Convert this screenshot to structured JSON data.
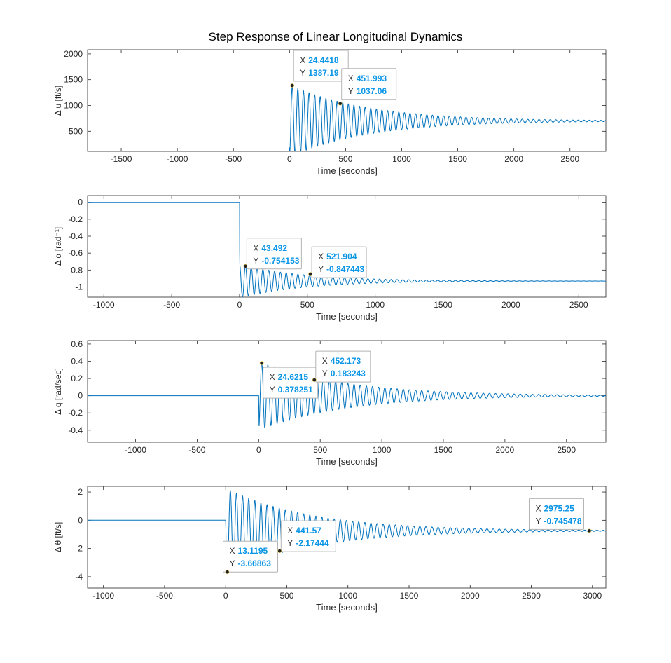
{
  "title": "Step Response of Linear Longitudinal Dynamics",
  "colors": {
    "line": "#0072bd",
    "tip_value": "#0a96e6",
    "axes": "#262626",
    "marker": "#222222"
  },
  "chart_data": [
    {
      "type": "line",
      "xlabel": "Time [seconds]",
      "ylabel": "Δ u [ft/s]",
      "xlim": [
        -1800,
        2820
      ],
      "ylim": [
        110,
        2080
      ],
      "xticks": [
        -1500,
        -1000,
        -500,
        0,
        500,
        1000,
        1500,
        2000,
        2500
      ],
      "yticks": [
        500,
        1000,
        1500,
        2000
      ],
      "series": {
        "t0": 0,
        "y0": 0,
        "final": 700,
        "period": 50,
        "amp": 700,
        "tau": 700,
        "peak_time": 24.4418,
        "first_sign": 1
      },
      "datatips": [
        {
          "x_label": "24.4418",
          "y_label": "1387.19",
          "x": 24.4418,
          "y": 1387.19
        },
        {
          "x_label": "451.993",
          "y_label": "1037.06",
          "x": 451.993,
          "y": 1037.06
        }
      ]
    },
    {
      "type": "line",
      "xlabel": "Time [seconds]",
      "ylabel": "Δ α [rad⁻¹]",
      "xlim": [
        -1120,
        2700
      ],
      "ylim": [
        -1.12,
        0.08
      ],
      "xticks": [
        -1000,
        -500,
        0,
        500,
        1000,
        1500,
        2000,
        2500
      ],
      "yticks": [
        0,
        -0.2,
        -0.4,
        -0.6,
        -0.8,
        -1
      ],
      "series": {
        "t0": 0,
        "y0": 0,
        "final": -0.93,
        "period": 43,
        "amp": 0.2,
        "tau": 480,
        "peak_time": 43.492,
        "first_sign": 1
      },
      "datatips": [
        {
          "x_label": "43.492",
          "y_label": "-0.754153",
          "x": 43.492,
          "y": -0.754153
        },
        {
          "x_label": "521.904",
          "y_label": "-0.847443",
          "x": 521.904,
          "y": -0.847443
        }
      ]
    },
    {
      "type": "line",
      "xlabel": "Time [seconds]",
      "ylabel": "Δ q [rad/sec]",
      "xlim": [
        -1390,
        2820
      ],
      "ylim": [
        -0.54,
        0.64
      ],
      "xticks": [
        -1000,
        -500,
        0,
        500,
        1000,
        1500,
        2000,
        2500
      ],
      "yticks": [
        0.6,
        0.4,
        0.2,
        0,
        -0.2,
        -0.4
      ],
      "series": {
        "t0": 0,
        "y0": 0,
        "final": 0,
        "period": 50,
        "amp": 0.4,
        "tau": 700,
        "peak_time": 24.6215,
        "first_sign": 1
      },
      "datatips": [
        {
          "x_label": "24.6215",
          "y_label": "0.378251",
          "x": 24.6215,
          "y": 0.378251
        },
        {
          "x_label": "452.173",
          "y_label": "0.183243",
          "x": 452.173,
          "y": 0.183243
        }
      ]
    },
    {
      "type": "line",
      "xlabel": "Time [seconds]",
      "ylabel": "Δ θ [ft/s]",
      "xlim": [
        -1130,
        3110
      ],
      "ylim": [
        -4.8,
        2.4
      ],
      "xticks": [
        -1000,
        -500,
        0,
        500,
        1000,
        1500,
        2000,
        2500,
        3000
      ],
      "yticks": [
        2,
        0,
        -2,
        -4
      ],
      "series": {
        "t0": 0,
        "y0": 0,
        "final": -0.745,
        "period": 50,
        "amp": 3.0,
        "tau": 700,
        "peak_time": 13.1195,
        "first_sign": -1
      },
      "datatips": [
        {
          "x_label": "13.1195",
          "y_label": "-3.66863",
          "x": 13.1195,
          "y": -3.66863
        },
        {
          "x_label": "441.57",
          "y_label": "-2.17444",
          "x": 441.57,
          "y": -2.17444
        },
        {
          "x_label": "2975.25",
          "y_label": "-0.745478",
          "x": 2975.25,
          "y": -0.745478
        }
      ]
    }
  ]
}
